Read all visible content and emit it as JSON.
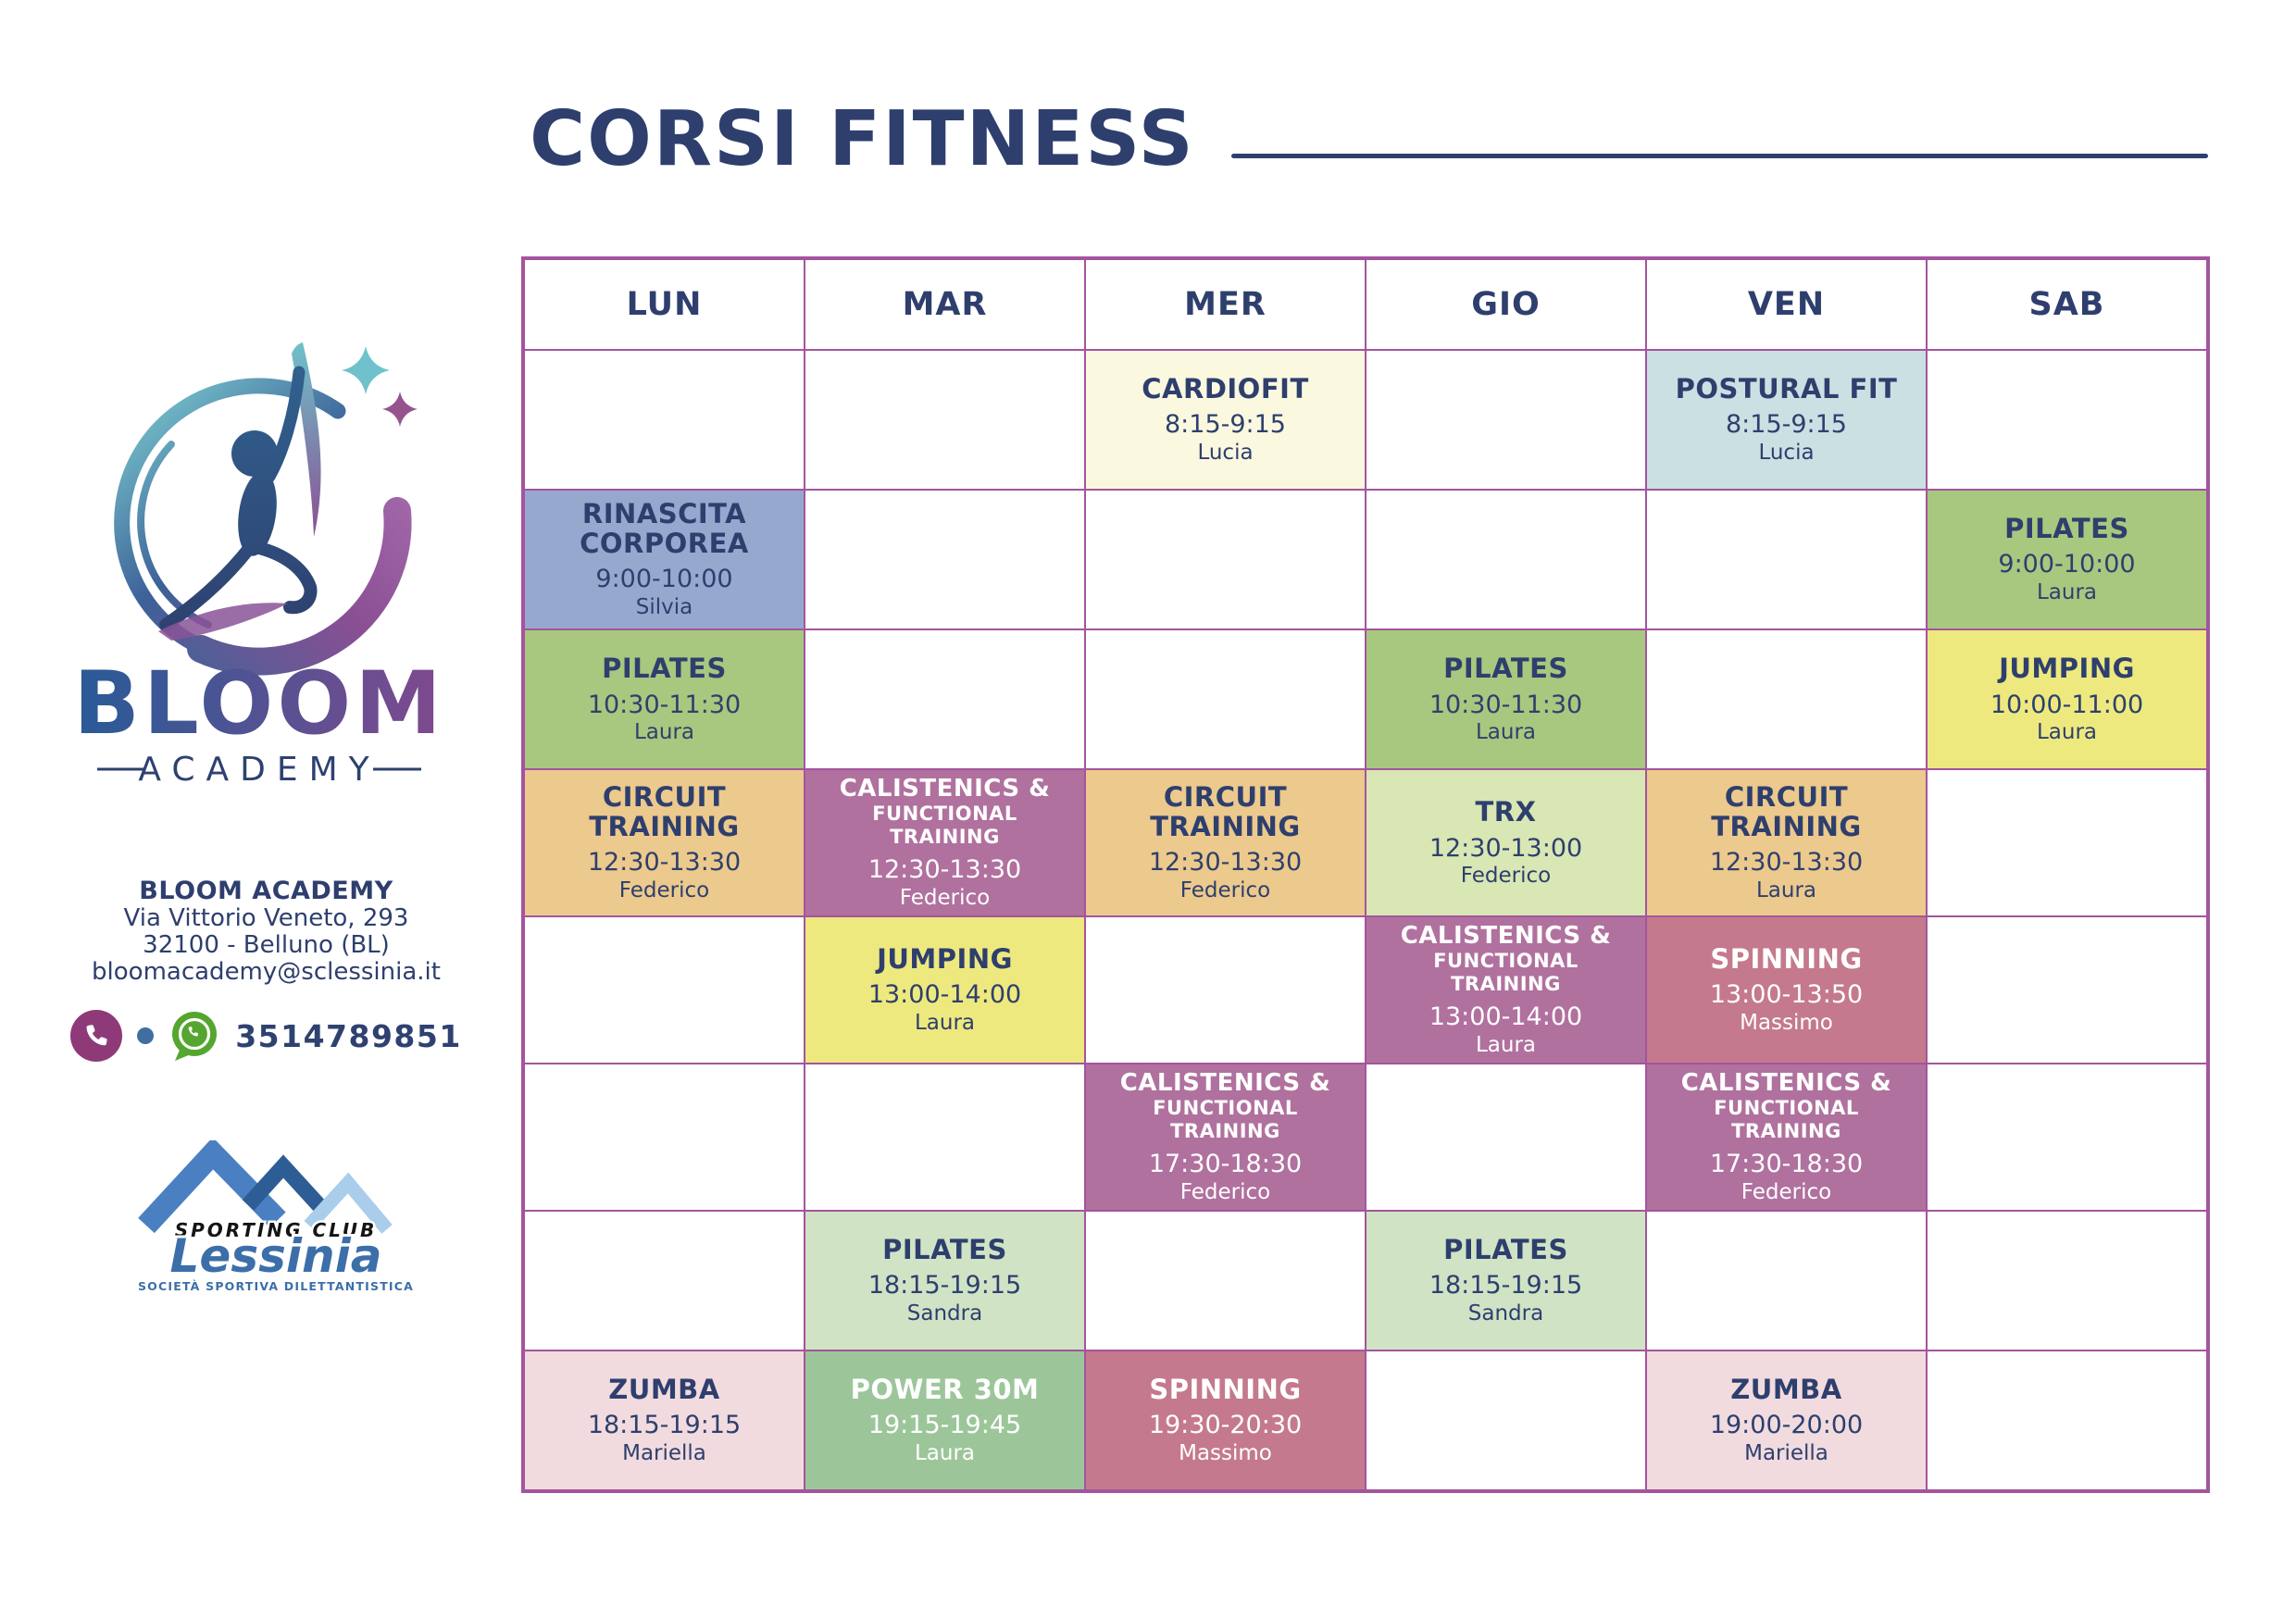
{
  "page": {
    "title": "CORSI FITNESS"
  },
  "sidebar": {
    "brand_name": "BLOOM",
    "brand_sub": "ACADEMY",
    "address": {
      "name": "BLOOM ACADEMY",
      "street": "Via Vittorio Veneto, 293",
      "city": "32100 - Belluno (BL)",
      "email": "bloomacademy@sclessinia.it"
    },
    "contact": {
      "icons": [
        "phone-circle-icon",
        "dot-icon",
        "whatsapp-icon"
      ],
      "number": "3514789851"
    },
    "club": {
      "top": "SPORTING CLUB",
      "name": "Lessinia",
      "sub": "SOCIETÀ SPORTIVA DILETTANTISTICA"
    }
  },
  "palette": {
    "navy": "#2E3F6E",
    "white": "#FFFFFF",
    "border": "#A4549E",
    "cream": "#FAF8DE",
    "lightblue": "#CAE0E2",
    "periwinkle": "#97A8CF",
    "green": "#A7C87E",
    "yellow": "#EDE97E",
    "orange": "#ECC98C",
    "purple": "#B0719E",
    "palegreen": "#D8E7B3",
    "rose": "#C47A8C",
    "lightgreen": "#D0E3C5",
    "pink": "#F1DBDE",
    "midgreen": "#9CC69A",
    "brand_blue": "#2D5A96",
    "brand_purple": "#7C4A8F",
    "lessinia_blue": "#3C6FA9",
    "whatsapp_green": "#55A62F",
    "phone_purple": "#8E3A78",
    "dot_blue": "#3F6F9F"
  },
  "schedule": {
    "days": [
      "LUN",
      "MAR",
      "MER",
      "GIO",
      "VEN",
      "SAB"
    ],
    "rows": [
      [
        null,
        null,
        {
          "title": "CARDIOFIT",
          "time": "8:15-9:15",
          "instructor": "Lucia",
          "bg": "cream",
          "fg": "navy"
        },
        null,
        {
          "title": "POSTURAL FIT",
          "time": "8:15-9:15",
          "instructor": "Lucia",
          "bg": "lightblue",
          "fg": "navy"
        },
        null
      ],
      [
        {
          "title": "RINASCITA CORPOREA",
          "time": "9:00-10:00",
          "instructor": "Silvia",
          "bg": "periwinkle",
          "fg": "navy"
        },
        null,
        null,
        null,
        null,
        {
          "title": "PILATES",
          "time": "9:00-10:00",
          "instructor": "Laura",
          "bg": "green",
          "fg": "navy"
        }
      ],
      [
        {
          "title": "PILATES",
          "time": "10:30-11:30",
          "instructor": "Laura",
          "bg": "green",
          "fg": "navy"
        },
        null,
        null,
        {
          "title": "PILATES",
          "time": "10:30-11:30",
          "instructor": "Laura",
          "bg": "green",
          "fg": "navy"
        },
        null,
        {
          "title": "JUMPING",
          "time": "10:00-11:00",
          "instructor": "Laura",
          "bg": "yellow",
          "fg": "navy"
        }
      ],
      [
        {
          "title": "CIRCUIT TRAINING",
          "time": "12:30-13:30",
          "instructor": "Federico",
          "bg": "orange",
          "fg": "navy"
        },
        {
          "title": "CALISTENICS &",
          "subtitle": "FUNCTIONAL TRAINING",
          "time": "12:30-13:30",
          "instructor": "Federico",
          "bg": "purple",
          "fg": "white"
        },
        {
          "title": "CIRCUIT TRAINING",
          "time": "12:30-13:30",
          "instructor": "Federico",
          "bg": "orange",
          "fg": "navy"
        },
        {
          "title": "TRX",
          "time": "12:30-13:00",
          "instructor": "Federico",
          "bg": "palegreen",
          "fg": "navy"
        },
        {
          "title": "CIRCUIT TRAINING",
          "time": "12:30-13:30",
          "instructor": "Laura",
          "bg": "orange",
          "fg": "navy"
        },
        null
      ],
      [
        null,
        {
          "title": "JUMPING",
          "time": "13:00-14:00",
          "instructor": "Laura",
          "bg": "yellow",
          "fg": "navy"
        },
        null,
        {
          "title": "CALISTENICS &",
          "subtitle": "FUNCTIONAL TRAINING",
          "time": "13:00-14:00",
          "instructor": "Laura",
          "bg": "purple",
          "fg": "white"
        },
        {
          "title": "SPINNING",
          "time": "13:00-13:50",
          "instructor": "Massimo",
          "bg": "rose",
          "fg": "white"
        },
        null
      ],
      [
        null,
        null,
        {
          "title": "CALISTENICS &",
          "subtitle": "FUNCTIONAL TRAINING",
          "time": "17:30-18:30",
          "instructor": "Federico",
          "bg": "purple",
          "fg": "white"
        },
        null,
        {
          "title": "CALISTENICS &",
          "subtitle": "FUNCTIONAL TRAINING",
          "time": "17:30-18:30",
          "instructor": "Federico",
          "bg": "purple",
          "fg": "white"
        },
        null
      ],
      [
        null,
        {
          "title": "PILATES",
          "time": "18:15-19:15",
          "instructor": "Sandra",
          "bg": "lightgreen",
          "fg": "navy"
        },
        null,
        {
          "title": "PILATES",
          "time": "18:15-19:15",
          "instructor": "Sandra",
          "bg": "lightgreen",
          "fg": "navy"
        },
        null,
        null
      ],
      [
        {
          "title": "ZUMBA",
          "time": "18:15-19:15",
          "instructor": "Mariella",
          "bg": "pink",
          "fg": "navy"
        },
        {
          "title": "POWER 30M",
          "time": "19:15-19:45",
          "instructor": "Laura",
          "bg": "midgreen",
          "fg": "white"
        },
        {
          "title": "SPINNING",
          "time": "19:30-20:30",
          "instructor": "Massimo",
          "bg": "rose",
          "fg": "white"
        },
        null,
        {
          "title": "ZUMBA",
          "time": "19:00-20:00",
          "instructor": "Mariella",
          "bg": "pink",
          "fg": "navy"
        },
        null
      ]
    ]
  }
}
